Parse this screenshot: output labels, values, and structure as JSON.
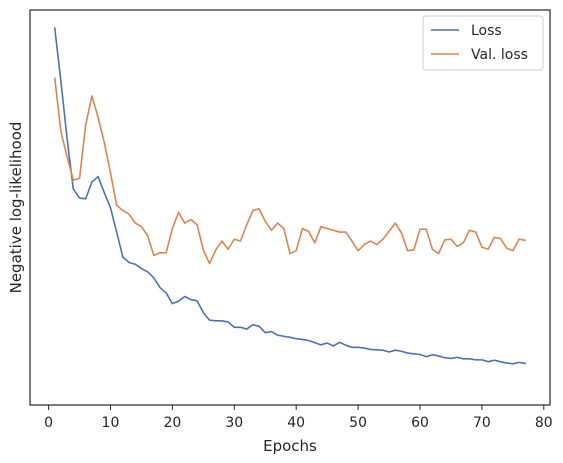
{
  "chart_data": {
    "type": "line",
    "xlabel": "Epochs",
    "ylabel": "Negative log-likelihood",
    "xlim": [
      -3,
      81
    ],
    "ylim": [
      0,
      100
    ],
    "xticks": [
      0,
      10,
      20,
      30,
      40,
      50,
      60,
      70,
      80
    ],
    "yticks_visible": false,
    "grid": false,
    "legend_position": "top-right",
    "series": [
      {
        "name": "Loss",
        "color": "#4c72b0",
        "x": [
          1,
          2,
          3,
          4,
          5,
          6,
          7,
          8,
          9,
          10,
          11,
          12,
          13,
          14,
          15,
          16,
          17,
          18,
          19,
          20,
          21,
          22,
          23,
          24,
          25,
          26,
          27,
          28,
          29,
          30,
          31,
          32,
          33,
          34,
          35,
          36,
          37,
          38,
          39,
          40,
          41,
          42,
          43,
          44,
          45,
          46,
          47,
          48,
          49,
          50,
          51,
          52,
          53,
          54,
          55,
          56,
          57,
          58,
          59,
          60,
          61,
          62,
          63,
          64,
          65,
          66,
          67,
          68,
          69,
          70,
          71,
          72,
          73,
          74,
          75,
          76,
          77
        ],
        "values": [
          100,
          85,
          69,
          55,
          52.5,
          52.3,
          57,
          58.5,
          54,
          49.8,
          43,
          36,
          34.5,
          34,
          32.8,
          31.9,
          30.2,
          27.5,
          26,
          23,
          23.7,
          25,
          24.1,
          23.8,
          20.5,
          18.4,
          18.2,
          18.2,
          17.9,
          16.4,
          16.4,
          15.9,
          17.1,
          16.7,
          14.9,
          15.2,
          14.2,
          13.9,
          13.6,
          13.2,
          13,
          12.7,
          12.1,
          11.5,
          12,
          11.2,
          12.2,
          11.4,
          10.8,
          10.8,
          10.6,
          10.2,
          10.1,
          10,
          9.5,
          10,
          9.7,
          9.2,
          9,
          8.8,
          8.2,
          8.7,
          8.4,
          7.9,
          7.7,
          8,
          7.6,
          7.6,
          7.3,
          7.3,
          6.8,
          7.2,
          6.8,
          6.4,
          6.2,
          6.6,
          6.3
        ]
      },
      {
        "name": "Val. loss",
        "color": "#dd8452",
        "x": [
          1,
          2,
          3,
          4,
          5,
          6,
          7,
          8,
          9,
          10,
          11,
          12,
          13,
          14,
          15,
          16,
          17,
          18,
          19,
          20,
          21,
          22,
          23,
          24,
          25,
          26,
          27,
          28,
          29,
          30,
          31,
          32,
          33,
          34,
          35,
          36,
          37,
          38,
          39,
          40,
          41,
          42,
          43,
          44,
          45,
          46,
          47,
          48,
          49,
          50,
          51,
          52,
          53,
          54,
          55,
          56,
          57,
          58,
          59,
          60,
          61,
          62,
          63,
          64,
          65,
          66,
          67,
          68,
          69,
          70,
          71,
          72,
          73,
          74,
          75,
          76,
          77
        ],
        "values": [
          86,
          71,
          64,
          57.5,
          58,
          73,
          81,
          75,
          68,
          59.5,
          50.5,
          49,
          48,
          45.5,
          44.5,
          42,
          36.5,
          37.2,
          37.2,
          44,
          48.5,
          45.5,
          46.5,
          45,
          38,
          34.2,
          38,
          40.5,
          38.2,
          41,
          40.5,
          45,
          49,
          49.5,
          46,
          43.5,
          45.5,
          44,
          37,
          37.8,
          44,
          43.2,
          40,
          44.5,
          44,
          43.5,
          43,
          43,
          40.5,
          37.8,
          39.5,
          40.5,
          39.5,
          41,
          43.2,
          45.5,
          42.8,
          37.8,
          38,
          43.8,
          43.8,
          38.2,
          37,
          40.8,
          41,
          39,
          40,
          43.5,
          43,
          38.8,
          38.2,
          41.5,
          41.2,
          38.5,
          37.8,
          41,
          40.7
        ]
      }
    ]
  }
}
